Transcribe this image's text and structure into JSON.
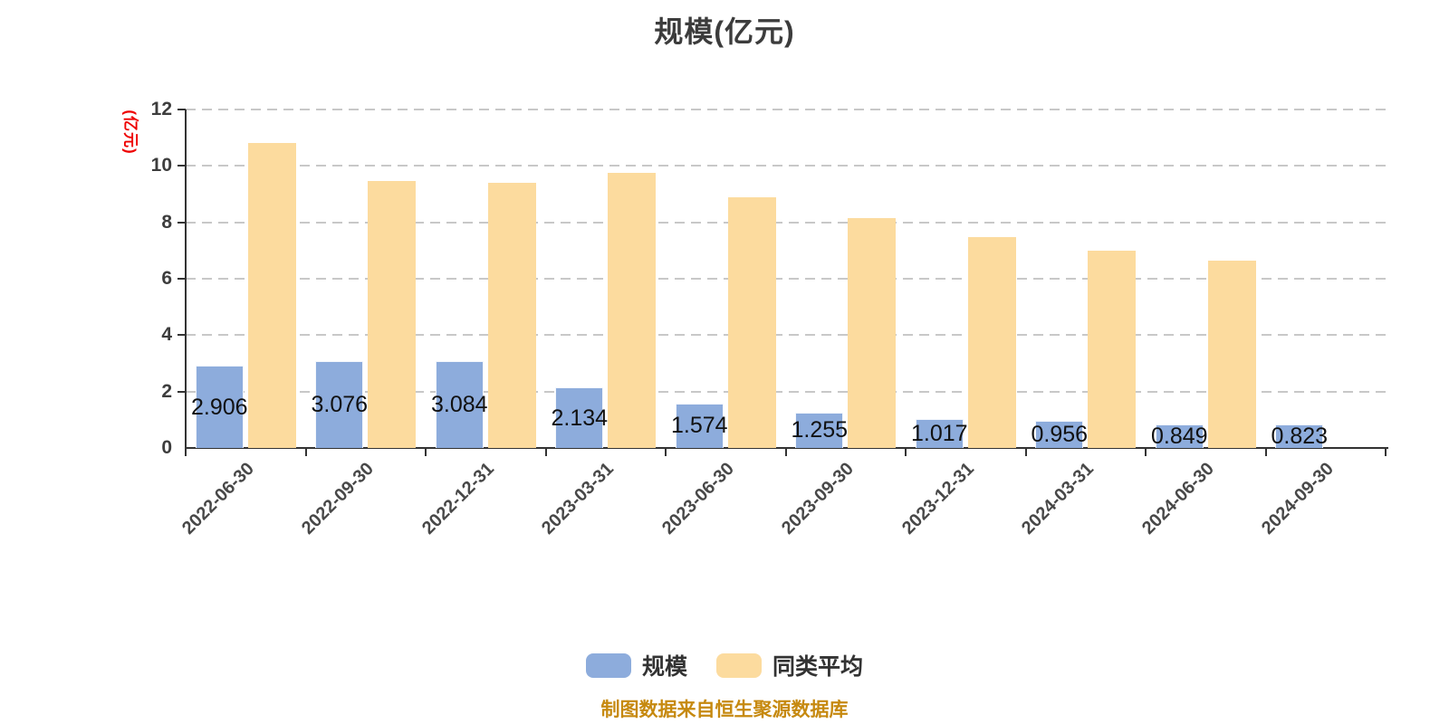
{
  "header": {
    "title": "规模(亿元)"
  },
  "y_axis": {
    "name": "(亿元)",
    "ticks": [
      0,
      2,
      4,
      6,
      8,
      10,
      12
    ],
    "max": 12
  },
  "footer": {
    "source_note": "制图数据来自恒生聚源数据库"
  },
  "legend": {
    "items": [
      {
        "label": "规模",
        "color": "#8dacdc"
      },
      {
        "label": "同类平均",
        "color": "#fcdb9e"
      }
    ]
  },
  "chart_data": {
    "type": "bar",
    "title": "规模(亿元)",
    "ylabel": "(亿元)",
    "categories": [
      "2022-06-30",
      "2022-09-30",
      "2022-12-31",
      "2023-03-31",
      "2023-06-30",
      "2023-09-30",
      "2023-12-31",
      "2024-03-31",
      "2024-06-30",
      "2024-09-30"
    ],
    "series": [
      {
        "name": "规模",
        "color": "#8dacdc",
        "values": [
          2.906,
          3.076,
          3.084,
          2.134,
          1.574,
          1.255,
          1.017,
          0.956,
          0.849,
          0.823
        ],
        "value_labels": [
          "2.906",
          "3.076",
          "3.084",
          "2.134",
          "1.574",
          "1.255",
          "1.017",
          "0.956",
          "0.849",
          "0.823"
        ]
      },
      {
        "name": "同类平均",
        "color": "#fcdb9e",
        "values": [
          10.8,
          9.45,
          9.4,
          9.75,
          8.9,
          8.15,
          7.48,
          7.0,
          6.64,
          null
        ]
      }
    ],
    "ylim": [
      0,
      12
    ],
    "y_ticks": [
      0,
      2,
      4,
      6,
      8,
      10,
      12
    ],
    "grid": "dashed-horizontal",
    "legend_position": "bottom",
    "label_color_grid": "#c8c8c8",
    "label_color_axis": "#333333"
  }
}
